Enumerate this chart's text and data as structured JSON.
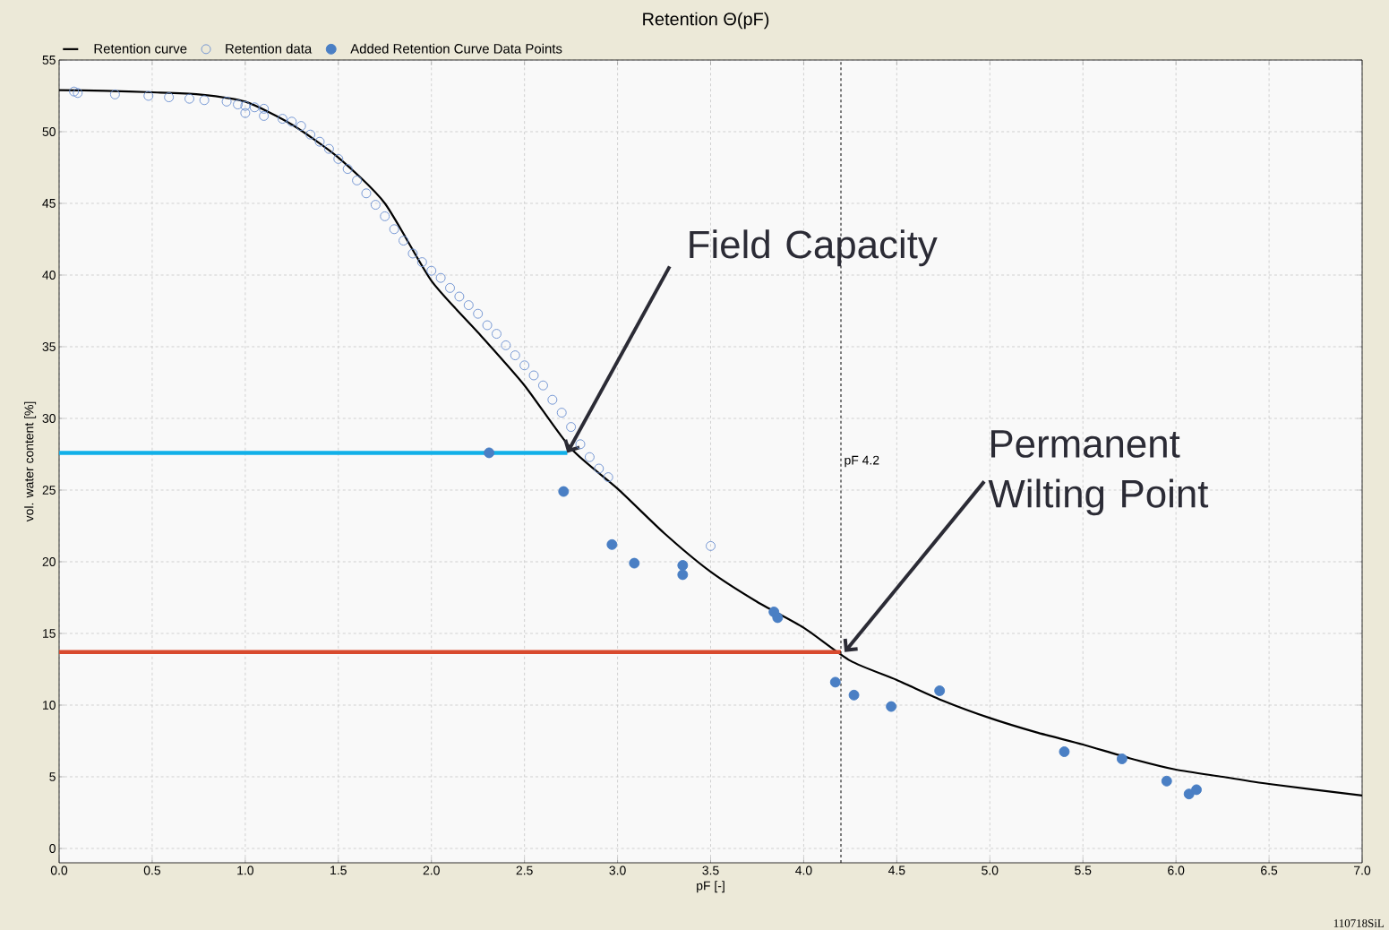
{
  "chart_data": {
    "type": "scatter",
    "title": "Retention Θ(pF)",
    "xlabel": "pF [-]",
    "ylabel": "vol. water content [%]",
    "xlim": [
      0,
      7
    ],
    "ylim": [
      -1,
      55
    ],
    "xticks": [
      {
        "value": 0,
        "label": "0.0"
      },
      {
        "value": 0.5,
        "label": "0.5"
      },
      {
        "value": 1,
        "label": "1.0"
      },
      {
        "value": 1.5,
        "label": "1.5"
      },
      {
        "value": 2,
        "label": "2.0"
      },
      {
        "value": 2.5,
        "label": "2.5"
      },
      {
        "value": 3,
        "label": "3.0"
      },
      {
        "value": 3.5,
        "label": "3.5"
      },
      {
        "value": 4,
        "label": "4.0"
      },
      {
        "value": 4.5,
        "label": "4.5"
      },
      {
        "value": 5,
        "label": "5.0"
      },
      {
        "value": 5.5,
        "label": "5.5"
      },
      {
        "value": 6,
        "label": "6.0"
      },
      {
        "value": 6.5,
        "label": "6.5"
      },
      {
        "value": 7,
        "label": "7.0"
      }
    ],
    "yticks": [
      0,
      5,
      10,
      15,
      20,
      25,
      30,
      35,
      40,
      45,
      50,
      55
    ],
    "grid": true,
    "legend": "top left",
    "series": [
      {
        "name": "Retention curve",
        "type": "line",
        "color": "#000000",
        "marker": "none",
        "x": [
          0,
          0.25,
          0.5,
          0.75,
          1.0,
          1.25,
          1.5,
          1.75,
          2.0,
          2.25,
          2.5,
          2.75,
          3.0,
          3.25,
          3.5,
          3.75,
          4.0,
          4.25,
          4.5,
          4.75,
          5.0,
          5.25,
          5.5,
          5.75,
          6.0,
          6.25,
          6.5,
          7.0
        ],
        "values": [
          52.9,
          52.85,
          52.75,
          52.6,
          52.1,
          50.5,
          48.2,
          45.0,
          39.6,
          36.0,
          32.3,
          27.9,
          25.1,
          22.0,
          19.3,
          17.2,
          15.4,
          13.1,
          11.75,
          10.3,
          9.1,
          8.1,
          7.25,
          6.3,
          5.5,
          5.0,
          4.5,
          3.7
        ]
      },
      {
        "name": "Retention data",
        "color": "#6a8fd0",
        "marker": "circle-open",
        "x": [
          0.08,
          0.1,
          0.3,
          0.48,
          0.59,
          0.7,
          0.78,
          0.9,
          0.96,
          1.0,
          1.0,
          1.05,
          1.1,
          1.1,
          1.2,
          1.25,
          1.3,
          1.35,
          1.4,
          1.45,
          1.5,
          1.55,
          1.6,
          1.65,
          1.7,
          1.75,
          1.8,
          1.85,
          1.9,
          1.95,
          2.0,
          2.05,
          2.1,
          2.15,
          2.2,
          2.25,
          2.3,
          2.35,
          2.4,
          2.45,
          2.5,
          2.55,
          2.6,
          2.65,
          2.7,
          2.75,
          2.8,
          2.85,
          2.9,
          2.95,
          3.5
        ],
        "values": [
          52.8,
          52.7,
          52.6,
          52.5,
          52.4,
          52.3,
          52.2,
          52.1,
          51.9,
          51.8,
          51.3,
          51.7,
          51.6,
          51.1,
          50.9,
          50.7,
          50.4,
          49.8,
          49.3,
          48.8,
          48.1,
          47.4,
          46.6,
          45.7,
          44.9,
          44.1,
          43.2,
          42.4,
          41.5,
          40.9,
          40.3,
          39.8,
          39.1,
          38.5,
          37.9,
          37.3,
          36.5,
          35.9,
          35.1,
          34.4,
          33.7,
          33.0,
          32.3,
          31.3,
          30.4,
          29.4,
          28.2,
          27.3,
          26.5,
          25.9,
          21.1
        ]
      },
      {
        "name": "Added Retention Curve Data Points",
        "color": "#4a7fc4",
        "marker": "circle",
        "x": [
          2.31,
          2.71,
          2.97,
          3.09,
          3.35,
          3.35,
          3.84,
          3.86,
          4.17,
          4.27,
          4.47,
          4.73,
          5.4,
          5.71,
          5.95,
          6.07,
          6.11
        ],
        "values": [
          27.6,
          24.9,
          21.2,
          19.9,
          19.75,
          19.1,
          16.5,
          16.1,
          11.6,
          10.7,
          9.9,
          11.0,
          6.75,
          6.25,
          4.7,
          3.8,
          4.1
        ]
      },
      {
        "type": "line",
        "color": "#12b0e8",
        "marker": "none",
        "x": [
          0,
          2.73
        ],
        "values": [
          27.6,
          27.6
        ]
      },
      {
        "type": "line",
        "color": "#d84a2e",
        "marker": "none",
        "x": [
          0,
          4.2
        ],
        "values": [
          13.7,
          13.7
        ]
      }
    ],
    "ref_lines": [
      {
        "axis": "x",
        "value": 4.2,
        "label": "pF 4.2",
        "line_style": "dashed"
      }
    ],
    "annotations": [
      {
        "text": "Field Capacity",
        "x": 2.73,
        "y": 27.6
      },
      {
        "text": "Permanent Wilting Point",
        "x": 4.22,
        "y": 13.7
      },
      "110718SiL"
    ]
  }
}
